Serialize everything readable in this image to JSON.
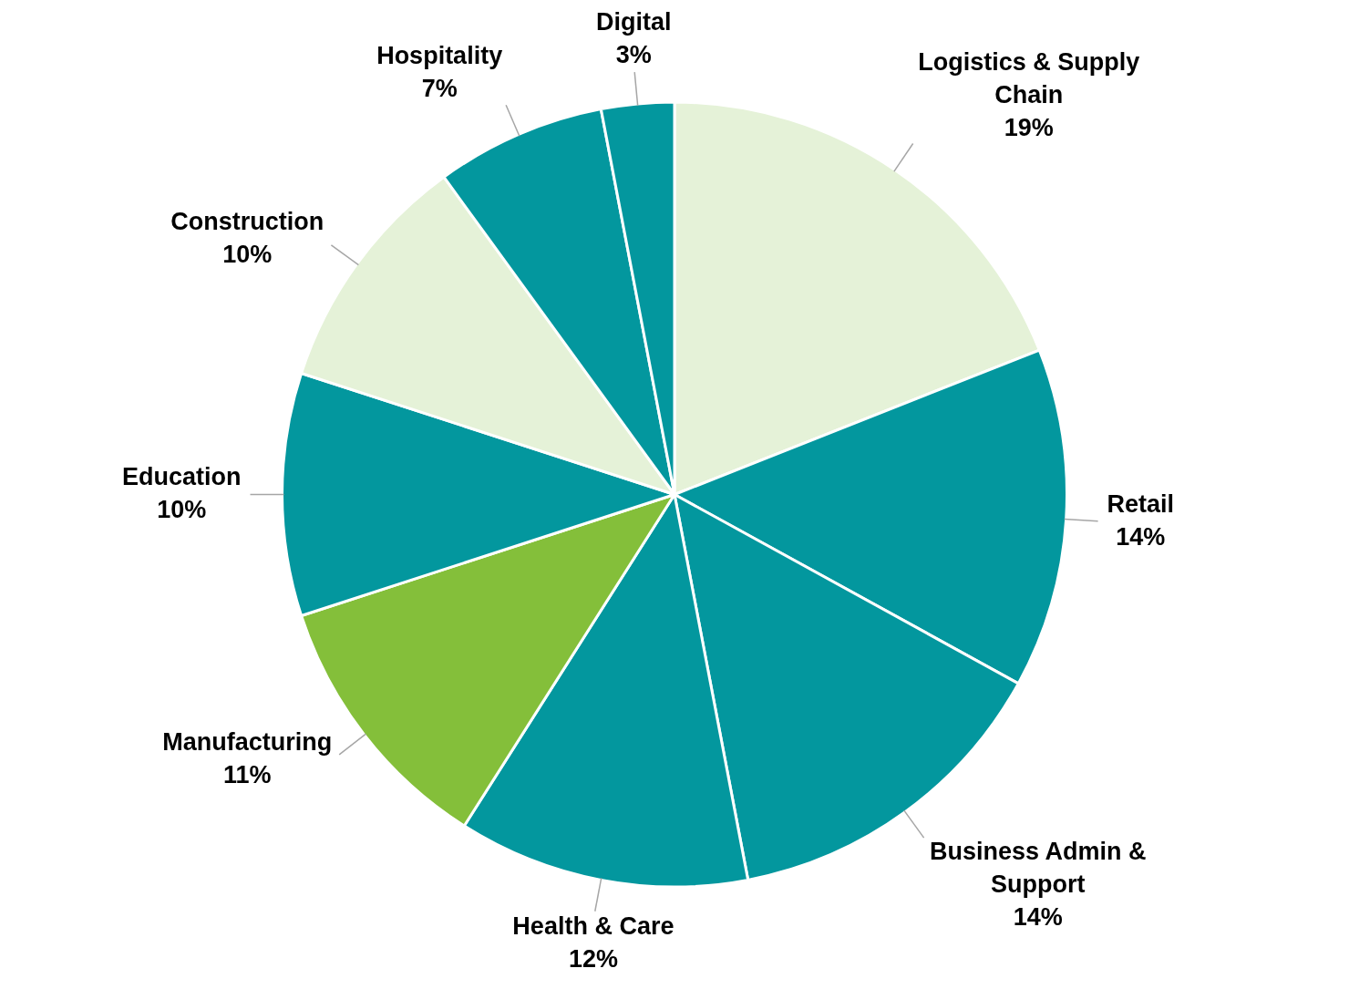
{
  "chart_data": {
    "type": "pie",
    "categories": [
      "Logistics & Supply Chain",
      "Retail",
      "Business Admin & Support",
      "Health & Care",
      "Manufacturing",
      "Education",
      "Construction",
      "Hospitality",
      "Digital"
    ],
    "values": [
      19,
      14,
      14,
      12,
      11,
      10,
      10,
      7,
      3
    ],
    "colors": [
      "#e5f2d8",
      "#03979e",
      "#03979e",
      "#03979e",
      "#84bf3a",
      "#03979e",
      "#e5f2d8",
      "#03979e",
      "#03979e"
    ],
    "value_labels": [
      "19%",
      "14%",
      "14%",
      "12%",
      "11%",
      "10%",
      "10%",
      "7%",
      "3%"
    ],
    "legend": false
  }
}
